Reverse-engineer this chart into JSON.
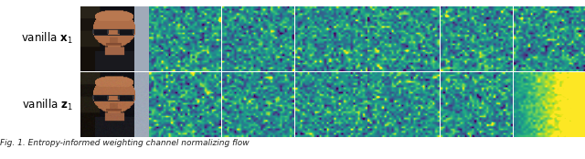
{
  "row_labels": [
    "vanilla $\\mathbf{x}_1$",
    "vanilla $\\mathbf{z}_1$"
  ],
  "caption": "Fig. 1. Entropy-informed weighting channel normalizing flow",
  "n_heatmap_cols": 6,
  "heatmap_rows": 30,
  "heatmap_cols": 30,
  "bg_color": "#ffffff",
  "label_fontsize": 8.5,
  "caption_fontsize": 6.5,
  "seeds_row1": [
    42,
    7,
    13,
    99,
    55,
    21
  ],
  "seeds_row2": [
    101,
    202,
    303,
    404,
    505,
    606
  ],
  "cmap": "viridis",
  "vmin": -2.2,
  "vmax": 2.2
}
